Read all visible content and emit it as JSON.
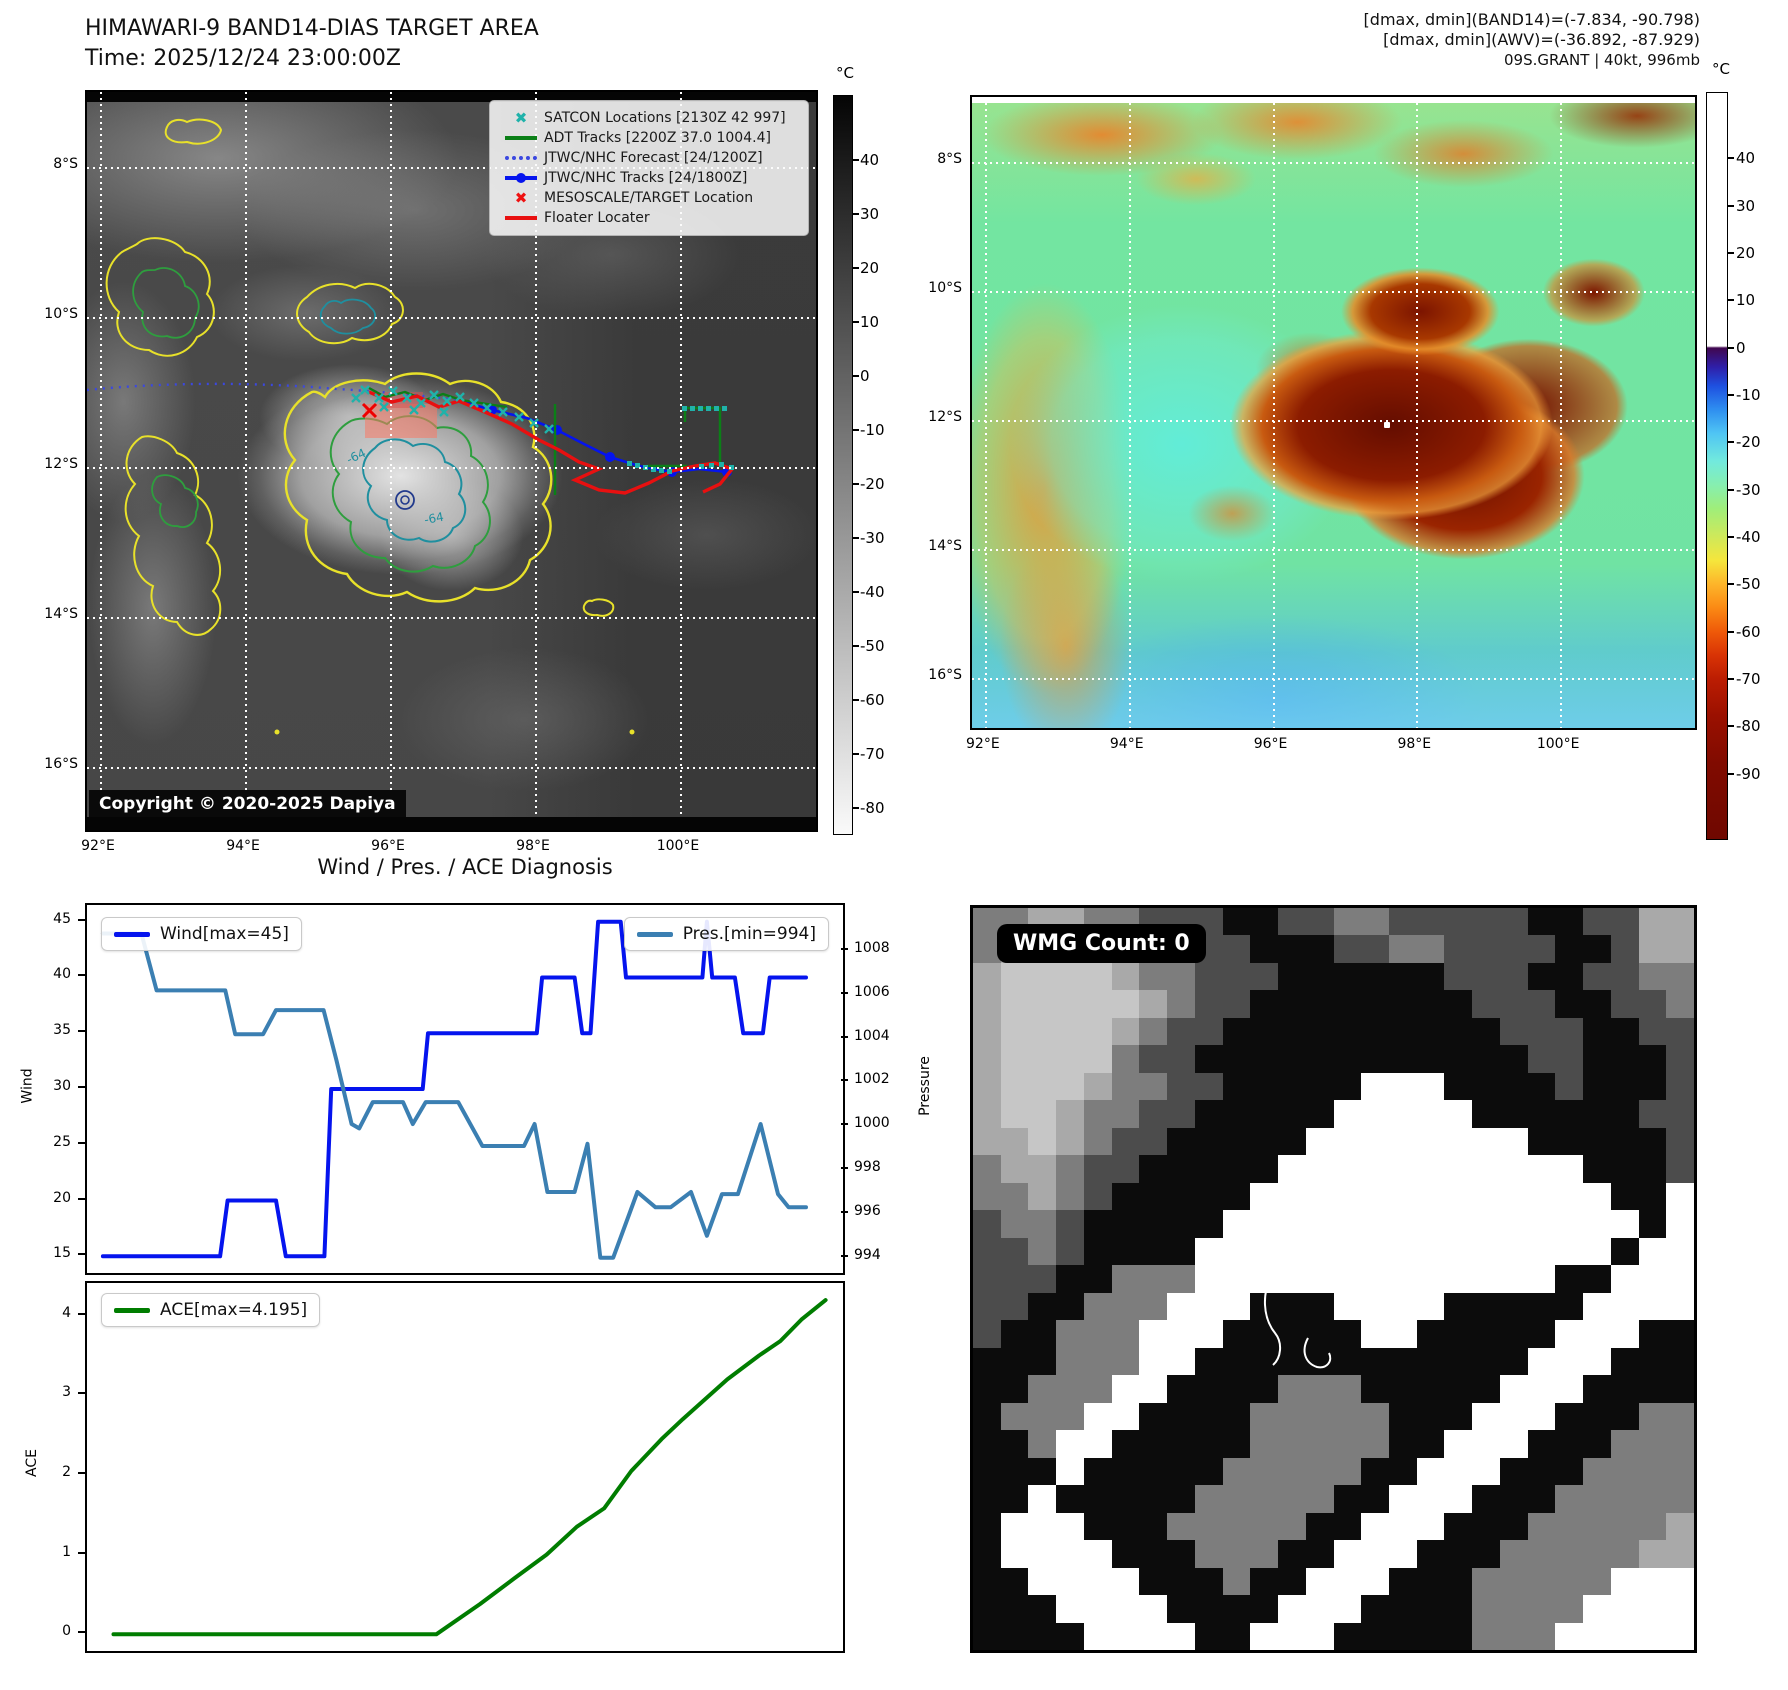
{
  "panel_tl": {
    "title": "HIMAWARI-9 BAND14-DIAS TARGET AREA",
    "time_label": "Time: 2025/12/24 23:00:00Z",
    "copyright": "Copyright © 2020-2025 Dapiya",
    "legend": [
      {
        "label": "SATCON Locations [2130Z 42 997]",
        "marker": "x",
        "color": "#20b2aa"
      },
      {
        "label": "ADT Tracks [2200Z 37.0 1004.4]",
        "marker": "line",
        "color": "#0b7f17"
      },
      {
        "label": "JTWC/NHC Forecast [24/1200Z]",
        "marker": "dotted",
        "color": "#3b48e0"
      },
      {
        "label": "JTWC/NHC Tracks [24/1800Z]",
        "marker": "line-dot",
        "color": "#0514ee"
      },
      {
        "label": "MESOSCALE/TARGET Location",
        "marker": "x",
        "color": "#ee1111"
      },
      {
        "label": "Floater Locater",
        "marker": "line",
        "color": "#e81010"
      }
    ],
    "x_ticks": [
      "92°E",
      "94°E",
      "96°E",
      "98°E",
      "100°E"
    ],
    "y_ticks": [
      "8°S",
      "10°S",
      "12°S",
      "14°S",
      "16°S"
    ],
    "contour_labels": [
      "-64",
      "-64"
    ],
    "colorbar": {
      "unit": "°C",
      "ticks": [
        40,
        30,
        20,
        10,
        0,
        -10,
        -20,
        -30,
        -40,
        -50,
        -60,
        -70,
        -80
      ],
      "top_value": 52,
      "bottom_value": -85,
      "stops": [
        [
          52,
          "#050505"
        ],
        [
          -85,
          "#fafafa"
        ]
      ]
    }
  },
  "panel_tr": {
    "header_lines": [
      "[dmax, dmin](BAND14)=(-7.834, -90.798)",
      "[dmax, dmin](AWV)=(-36.892, -87.929)",
      "09S.GRANT | 40kt, 996mb"
    ],
    "x_ticks": [
      "92°E",
      "94°E",
      "96°E",
      "98°E",
      "100°E"
    ],
    "y_ticks": [
      "8°S",
      "10°S",
      "12°S",
      "14°S",
      "16°S"
    ],
    "colorbar": {
      "unit": "°C",
      "ticks": [
        40,
        30,
        20,
        10,
        0,
        -10,
        -20,
        -30,
        -40,
        -50,
        -60,
        -70,
        -80,
        -90
      ],
      "top_value": 54,
      "bottom_value": -104,
      "stops": [
        [
          54,
          "#ffffff"
        ],
        [
          0.4,
          "#ffffff"
        ],
        [
          0,
          "#40074f"
        ],
        [
          -4,
          "#2f1fa8"
        ],
        [
          -8,
          "#1e50e0"
        ],
        [
          -13,
          "#2e8ef0"
        ],
        [
          -18,
          "#4fc4f4"
        ],
        [
          -24,
          "#72eadd"
        ],
        [
          -29,
          "#86efb0"
        ],
        [
          -34,
          "#9fee7a"
        ],
        [
          -40,
          "#cfe95a"
        ],
        [
          -45,
          "#f5e63c"
        ],
        [
          -50,
          "#fdb52a"
        ],
        [
          -55,
          "#fb8a14"
        ],
        [
          -60,
          "#ef5a09"
        ],
        [
          -65,
          "#d93405"
        ],
        [
          -70,
          "#bc1d02"
        ],
        [
          -78,
          "#9a1000"
        ],
        [
          -88,
          "#800b00"
        ],
        [
          -104,
          "#6f0800"
        ]
      ]
    }
  },
  "charts": {
    "section_title": "Wind / Pres. / ACE Diagnosis"
  },
  "chart_data": [
    {
      "type": "line",
      "title": "Wind / Pres. / ACE Diagnosis",
      "x_axis": {
        "limits": [
          0,
          1
        ],
        "ticks": []
      },
      "y_left": {
        "label": "Wind",
        "ticks": [
          15,
          20,
          25,
          30,
          35,
          40,
          45
        ],
        "ymin": 13.5,
        "ymax": 46.5
      },
      "y_right": {
        "label": "Pressure",
        "ticks": [
          994,
          996,
          998,
          1000,
          1002,
          1004,
          1006,
          1008
        ],
        "ymin": 993.3,
        "ymax": 1010.1
      },
      "legend_position": {
        "wind": "upper left",
        "pres": "upper right"
      },
      "grid": false,
      "series": [
        {
          "name": "Wind[max=45]",
          "color": "#0514ee",
          "axis": "left",
          "points": [
            [
              0.021,
              15
            ],
            [
              0.176,
              15
            ],
            [
              0.186,
              20
            ],
            [
              0.25,
              20
            ],
            [
              0.263,
              15
            ],
            [
              0.314,
              15
            ],
            [
              0.323,
              30
            ],
            [
              0.444,
              30
            ],
            [
              0.451,
              35
            ],
            [
              0.595,
              35
            ],
            [
              0.602,
              40
            ],
            [
              0.645,
              40
            ],
            [
              0.655,
              35
            ],
            [
              0.666,
              35
            ],
            [
              0.676,
              45
            ],
            [
              0.706,
              45
            ],
            [
              0.713,
              40
            ],
            [
              0.807,
              40
            ],
            [
              0.814,
              40
            ],
            [
              0.82,
              45
            ],
            [
              0.827,
              40
            ],
            [
              0.857,
              40
            ],
            [
              0.868,
              35
            ],
            [
              0.894,
              35
            ],
            [
              0.903,
              40
            ],
            [
              0.951,
              40
            ]
          ]
        },
        {
          "name": "Pres.[min=994]",
          "color": "#3b7fb2",
          "axis": "right",
          "points": [
            [
              0.021,
              1008.8
            ],
            [
              0.072,
              1008.8
            ],
            [
              0.092,
              1006.2
            ],
            [
              0.183,
              1006.2
            ],
            [
              0.196,
              1004.2
            ],
            [
              0.233,
              1004.2
            ],
            [
              0.25,
              1005.3
            ],
            [
              0.313,
              1005.3
            ],
            [
              0.33,
              1003.0
            ],
            [
              0.35,
              1000.1
            ],
            [
              0.36,
              999.9
            ],
            [
              0.378,
              1001.1
            ],
            [
              0.418,
              1001.1
            ],
            [
              0.431,
              1000.1
            ],
            [
              0.448,
              1001.1
            ],
            [
              0.491,
              1001.1
            ],
            [
              0.523,
              999.1
            ],
            [
              0.578,
              999.1
            ],
            [
              0.592,
              1000.1
            ],
            [
              0.609,
              997.0
            ],
            [
              0.645,
              997.0
            ],
            [
              0.662,
              999.2
            ],
            [
              0.679,
              994.0
            ],
            [
              0.696,
              994.0
            ],
            [
              0.728,
              997.0
            ],
            [
              0.752,
              996.3
            ],
            [
              0.772,
              996.3
            ],
            [
              0.799,
              997.0
            ],
            [
              0.82,
              995.0
            ],
            [
              0.84,
              996.9
            ],
            [
              0.861,
              996.9
            ],
            [
              0.891,
              1000.1
            ],
            [
              0.914,
              996.9
            ],
            [
              0.928,
              996.3
            ],
            [
              0.951,
              996.3
            ]
          ]
        }
      ]
    },
    {
      "type": "line",
      "x_axis": {
        "limits": [
          0,
          1
        ],
        "ticks": []
      },
      "y_left": {
        "label": "ACE",
        "ticks": [
          0,
          1,
          2,
          3,
          4
        ],
        "ymin": -0.21,
        "ymax": 4.41
      },
      "grid": false,
      "series": [
        {
          "name": "ACE[max=4.195]",
          "color": "#007d00",
          "axis": "left",
          "points": [
            [
              0.035,
              0
            ],
            [
              0.462,
              0
            ],
            [
              0.52,
              0.38
            ],
            [
              0.565,
              0.7
            ],
            [
              0.608,
              1.0
            ],
            [
              0.648,
              1.35
            ],
            [
              0.684,
              1.58
            ],
            [
              0.72,
              2.05
            ],
            [
              0.76,
              2.45
            ],
            [
              0.788,
              2.7
            ],
            [
              0.847,
              3.2
            ],
            [
              0.889,
              3.5
            ],
            [
              0.917,
              3.68
            ],
            [
              0.945,
              3.95
            ],
            [
              0.977,
              4.195
            ]
          ]
        }
      ]
    }
  ],
  "panel_br": {
    "badge": "WMG Count: 0",
    "grid_palette": {
      "0": "#0c0c0c",
      "1": "#4c4c4c",
      "2": "#7d7d7d",
      "3": "#a9a9a9",
      "4": "#c6c6c6",
      "5": "#ffffff"
    },
    "grid_rows": [
      "22332211100112211111001133",
      "23443221110001122111100133",
      "34444322111000000111001122",
      "34444432110000000011100112",
      "34444321100000000001110011",
      "34444211000000000000110001",
      "34443221100000555000010001",
      "34432211000005555500000011",
      "33432110000055555555000001",
      "23321100000555555555550001",
      "22321000005555555555555005",
      "12210000055555555555555505",
      "11210000555555555555555055",
      "11100222555555555555500555",
      "11002225550005555000005555",
      "10022255500000550000055500",
      "00022255000000000000555000",
      "00222550000222000005550000",
      "02225500002222200055500022",
      "00255000002222200555000222",
      "00050000022222005550002222",
      "00500000222220055500022222",
      "05550002222200555000222223",
      "05555000222005550002222233",
      "00555500020055500022222555",
      "00055550000555000022225555",
      "00005555005550000022255555"
    ]
  }
}
